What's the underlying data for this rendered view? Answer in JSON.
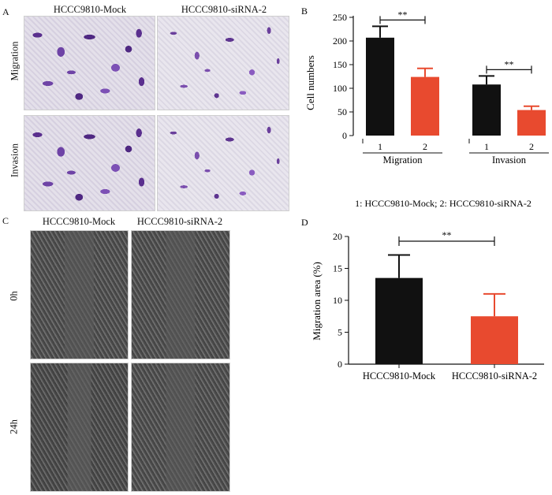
{
  "panel_a": {
    "letter": "A",
    "columns": [
      "HCCC9810-Mock",
      "HCCC9810-siRNA-2"
    ],
    "rows": [
      "Migration",
      "Invasion"
    ]
  },
  "panel_c": {
    "letter": "C",
    "columns": [
      "HCCC9810-Mock",
      "HCCC9810-siRNA-2"
    ],
    "rows": [
      "0h",
      "24h"
    ]
  },
  "colors": {
    "mock": "#111111",
    "sirna": "#e84a2f"
  },
  "chart_data": [
    {
      "type": "bar",
      "panel": "B",
      "ylabel": "Cell numbers",
      "ylim": [
        0,
        250
      ],
      "yticks": [
        0,
        50,
        100,
        150,
        200,
        250
      ],
      "groups": [
        {
          "name": "Migration",
          "bars": [
            {
              "label": "1",
              "value": 207,
              "err": 24,
              "color": "#111111"
            },
            {
              "label": "2",
              "value": 124,
              "err": 18,
              "color": "#e84a2f"
            }
          ],
          "significance": "**"
        },
        {
          "name": "Invasion",
          "bars": [
            {
              "label": "1",
              "value": 108,
              "err": 18,
              "color": "#111111"
            },
            {
              "label": "2",
              "value": 54,
              "err": 8,
              "color": "#e84a2f"
            }
          ],
          "significance": "**"
        }
      ],
      "footnote": "1: HCCC9810-Mock; 2: HCCC9810-siRNA-2"
    },
    {
      "type": "bar",
      "panel": "D",
      "ylabel": "Migration area (%)",
      "ylim": [
        0,
        20
      ],
      "yticks": [
        0,
        5,
        10,
        15,
        20
      ],
      "categories": [
        "HCCC9810-Mock",
        "HCCC9810-siRNA-2"
      ],
      "values": [
        13.5,
        7.5
      ],
      "errors": [
        3.6,
        3.5
      ],
      "colors": [
        "#111111",
        "#e84a2f"
      ],
      "significance": "**"
    }
  ]
}
